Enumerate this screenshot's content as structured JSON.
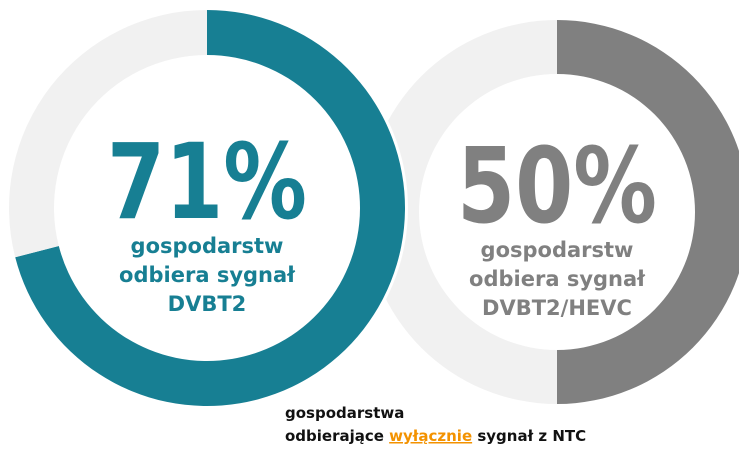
{
  "chart_data": [
    {
      "type": "donut",
      "values": [
        71,
        29
      ],
      "colors": [
        "#177f93",
        "#f1f1f1"
      ],
      "value_labels": [
        "71%"
      ],
      "text_color": "#177f93",
      "center_text": [
        "gospodarstw",
        "odbiera sygnał",
        "DVBT2"
      ]
    },
    {
      "type": "donut",
      "values": [
        50,
        50
      ],
      "colors": [
        "#808080",
        "#f1f1f1"
      ],
      "value_labels": [
        "50%"
      ],
      "text_color": "#808080",
      "center_text": [
        "gospodarstw",
        "odbiera sygnał",
        "DVBT2/HEVC"
      ]
    }
  ],
  "footnote": {
    "line1": "gospodarstwa",
    "line2": [
      "odbierające ",
      "wyłącznie",
      " sygnał z NTC"
    ],
    "highlight_color": "#f39200"
  }
}
